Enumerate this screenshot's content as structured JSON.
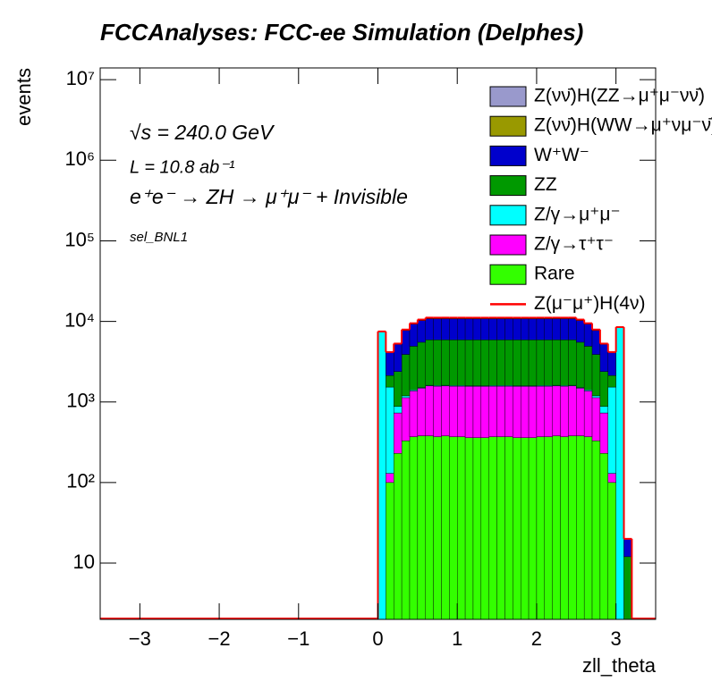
{
  "chart_data": {
    "type": "stacked_histogram",
    "title": "FCCAnalyses: FCC-ee Simulation (Delphes)",
    "x_label": "zll_theta",
    "y_label": "events",
    "annotations": [
      "√s = 240.0 GeV",
      "L = 10.8 ab⁻¹",
      "e⁺e⁻ → ZH → μ⁺μ⁻ + Invisible",
      "sel_BNL1"
    ],
    "log_y": true,
    "xlim": [
      -3.5,
      3.5
    ],
    "ylim": [
      2,
      14000000
    ],
    "xticks": [
      {
        "value": -3,
        "label": "−3"
      },
      {
        "value": -2,
        "label": "−2"
      },
      {
        "value": -1,
        "label": "−1"
      },
      0,
      1,
      2,
      3
    ],
    "yticks": [
      10,
      {
        "value": 100,
        "label": "10²"
      },
      {
        "value": 1000,
        "label": "10³"
      },
      {
        "value": 10000,
        "label": "10⁴"
      },
      {
        "value": 100000,
        "label": "10⁵"
      },
      {
        "value": 1000000,
        "label": "10⁶"
      },
      {
        "value": 10000000,
        "label": "10⁷"
      }
    ],
    "bins": [
      0,
      0.1,
      0.2,
      0.3,
      0.4,
      0.5,
      0.6,
      0.7,
      0.8,
      0.9,
      1.0,
      1.1,
      1.2,
      1.3,
      1.4,
      1.5,
      1.6,
      1.7,
      1.8,
      1.9,
      2.0,
      2.1,
      2.2,
      2.3,
      2.4,
      2.5,
      2.6,
      2.7,
      2.8,
      2.9,
      3.0,
      3.1,
      3.2
    ],
    "series": [
      {
        "name": "Z(νν̄)H(ZZ→μ⁺μ⁻νν̄)",
        "color": "#9999cc",
        "style": "fill",
        "values": [
          0,
          3,
          5,
          5,
          5,
          5,
          5,
          5,
          5,
          5,
          5,
          5,
          5,
          5,
          5,
          5,
          5,
          5,
          5,
          5,
          5,
          5,
          5,
          5,
          5,
          5,
          5,
          5,
          5,
          3,
          0,
          0
        ]
      },
      {
        "name": "Z(νν̄)H(WW→μ⁺νμ⁻ν̄)",
        "color": "#999900",
        "style": "fill",
        "values": [
          0,
          10,
          15,
          20,
          20,
          20,
          20,
          20,
          20,
          20,
          20,
          20,
          20,
          20,
          20,
          20,
          20,
          20,
          20,
          20,
          20,
          20,
          20,
          20,
          20,
          20,
          20,
          20,
          15,
          10,
          0,
          0
        ]
      },
      {
        "name": "W⁺W⁻",
        "color": "#0000cc",
        "style": "fill",
        "values": [
          0,
          2000,
          2800,
          3800,
          4300,
          4700,
          4900,
          4900,
          4900,
          4900,
          4900,
          4900,
          4900,
          4900,
          4900,
          4900,
          4900,
          4900,
          4900,
          4900,
          4900,
          4900,
          4900,
          4900,
          4900,
          4700,
          4300,
          3800,
          2800,
          2000,
          0,
          8
        ]
      },
      {
        "name": "ZZ",
        "color": "#009900",
        "style": "fill",
        "values": [
          0,
          600,
          1500,
          2700,
          3500,
          4000,
          4300,
          4300,
          4300,
          4300,
          4300,
          4300,
          4300,
          4300,
          4300,
          4300,
          4300,
          4300,
          4300,
          4300,
          4300,
          4300,
          4300,
          4300,
          4300,
          4000,
          3500,
          2700,
          1500,
          600,
          0,
          12
        ]
      },
      {
        "name": "Z/γ→μ⁺μ⁻",
        "color": "#00ffff",
        "style": "fill",
        "values": [
          7500,
          1400,
          150,
          60,
          40,
          30,
          30,
          30,
          30,
          30,
          30,
          30,
          30,
          30,
          30,
          30,
          30,
          30,
          30,
          30,
          30,
          30,
          30,
          30,
          30,
          30,
          40,
          60,
          150,
          1400,
          8500,
          0
        ]
      },
      {
        "name": "Z/γ→τ⁺τ⁻",
        "color": "#ff00ff",
        "style": "fill",
        "values": [
          0,
          30,
          500,
          800,
          1000,
          1100,
          1200,
          1200,
          1200,
          1200,
          1200,
          1200,
          1200,
          1200,
          1200,
          1200,
          1200,
          1200,
          1200,
          1200,
          1200,
          1200,
          1200,
          1200,
          1200,
          1100,
          1000,
          800,
          500,
          30,
          0,
          0
        ]
      },
      {
        "name": "Rare",
        "color": "#33ff00",
        "style": "fill",
        "values": [
          0,
          100,
          230,
          330,
          370,
          380,
          380,
          370,
          380,
          370,
          370,
          360,
          360,
          360,
          370,
          370,
          370,
          360,
          360,
          360,
          370,
          370,
          380,
          370,
          380,
          380,
          370,
          330,
          230,
          100,
          0,
          0
        ]
      },
      {
        "name": "Z(μ⁻μ⁺)H(4ν)",
        "color": "#ff0000",
        "style": "line",
        "values": [
          0,
          20,
          100,
          200,
          250,
          300,
          300,
          300,
          300,
          300,
          300,
          300,
          300,
          300,
          300,
          300,
          300,
          300,
          300,
          300,
          300,
          300,
          300,
          300,
          300,
          300,
          250,
          200,
          100,
          20,
          0,
          0
        ]
      }
    ]
  }
}
